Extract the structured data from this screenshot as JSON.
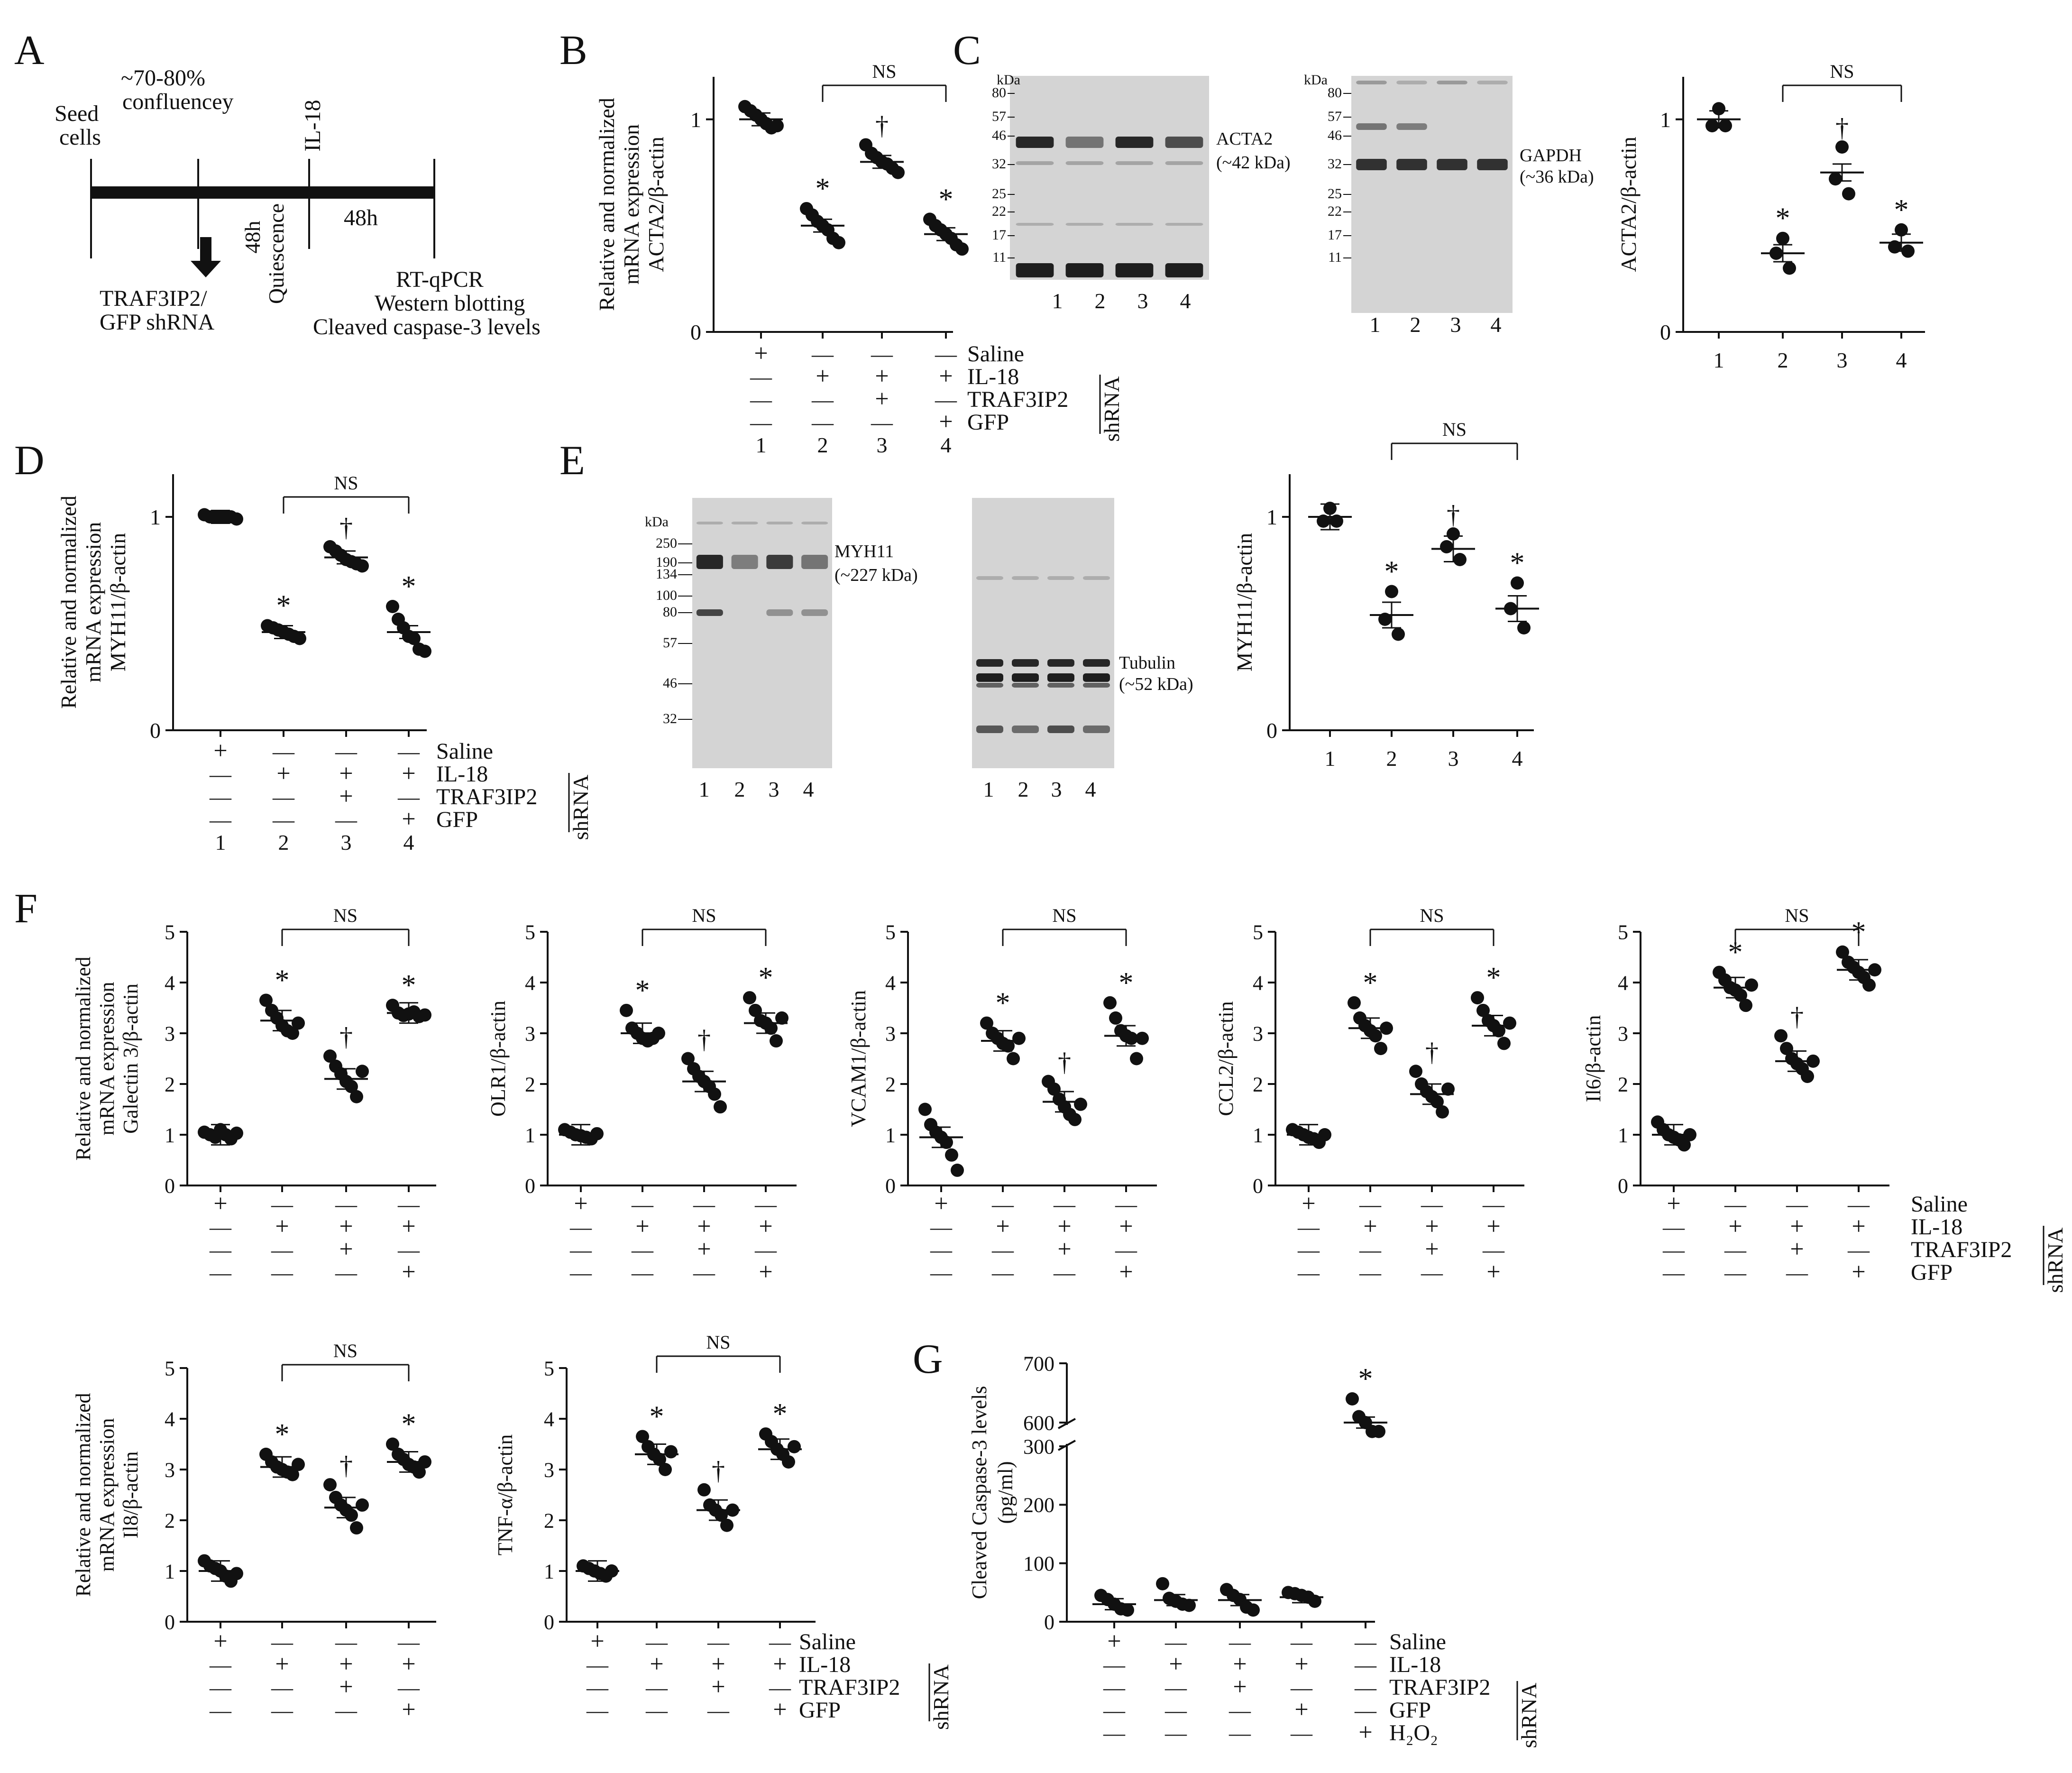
{
  "panel_labels": {
    "A": "A",
    "B": "B",
    "C": "C",
    "D": "D",
    "E": "E",
    "F": "F",
    "G": "G"
  },
  "timeline": {
    "seed": [
      "Seed",
      "cells"
    ],
    "confluency": [
      "~70-80%",
      "confluencey"
    ],
    "il18": "IL-18",
    "shrna": [
      "TRAF3IP2/",
      "GFP shRNA"
    ],
    "quiescence": [
      "48h",
      "Quiescence"
    ],
    "h48": "48h",
    "assays": [
      "RT-qPCR",
      "Western blotting",
      "Cleaved caspase-3 levels"
    ]
  },
  "ylabels": {
    "B": [
      "Relative and normalized",
      "mRNA expression",
      "ACTA2/β-actin"
    ],
    "D": [
      "Relative and normalized",
      "mRNA expression",
      "MYH11/β-actin"
    ],
    "F1": [
      "Relative and normalized",
      "mRNA expression",
      "Galectin 3/β-actin"
    ],
    "F6": [
      "Relative and normalized",
      "mRNA expression",
      "Il8/β-actin"
    ],
    "C": "ACTA2/β-actin",
    "E": "MYH11/β-actin",
    "F2": "OLR1/β-actin",
    "F3": "VCAM1/β-actin",
    "F4": "CCL2/β-actin",
    "F5": "Il6/β-actin",
    "F7": "TNF-α/β-actin",
    "G": [
      "Cleaved Caspase-3 levels",
      "(pg/ml)"
    ]
  },
  "treat_labels": {
    "saline": "Saline",
    "il18": "IL-18",
    "traf": "TRAF3IP2",
    "gfp": "GFP",
    "h2o2": "H₂O₂",
    "shrna": "shRNA"
  },
  "sig": {
    "star": "*",
    "dagger": "†",
    "ns": "NS"
  },
  "lane_numbers": [
    "1",
    "2",
    "3",
    "4"
  ],
  "blots": {
    "kda": "kDa",
    "acta2": {
      "markers": [
        "80",
        "57",
        "46",
        "32",
        "25",
        "22",
        "17",
        "11"
      ],
      "label": [
        "ACTA2",
        "(~42 kDa)"
      ]
    },
    "gapdh": {
      "markers": [
        "80",
        "57",
        "46",
        "32",
        "25",
        "22",
        "17",
        "11"
      ],
      "label": [
        "GAPDH",
        "(~36 kDa)"
      ]
    },
    "myh11": {
      "markers": [
        "250",
        "190",
        "134",
        "100",
        "80",
        "57",
        "46",
        "32"
      ],
      "label": [
        "MYH11",
        "(~227 kDa)"
      ]
    },
    "tubulin": {
      "label": [
        "Tubulin",
        "(~52 kDa)"
      ]
    }
  },
  "chart_data": [
    {
      "id": "B",
      "type": "scatter",
      "ylabel": "ACTA2/β-actin",
      "ylim": [
        0,
        1.2
      ],
      "yticks": [
        "0",
        "1"
      ],
      "groups": [
        "1",
        "2",
        "3",
        "4"
      ],
      "means": [
        1.0,
        0.5,
        0.8,
        0.46
      ],
      "points": [
        [
          1.06,
          1.04,
          1.02,
          1.0,
          0.98,
          0.96,
          0.97
        ],
        [
          0.58,
          0.55,
          0.52,
          0.5,
          0.48,
          0.44,
          0.42
        ],
        [
          0.88,
          0.84,
          0.82,
          0.8,
          0.79,
          0.77,
          0.75
        ],
        [
          0.53,
          0.5,
          0.48,
          0.46,
          0.44,
          0.41,
          0.39
        ]
      ],
      "annot": [
        "",
        "*",
        "†",
        "*"
      ],
      "ns_bracket": [
        2,
        4
      ]
    },
    {
      "id": "C",
      "type": "scatter",
      "ylabel": "ACTA2/β-actin",
      "ylim": [
        0,
        1.2
      ],
      "yticks": [
        "0",
        "1"
      ],
      "xticks": [
        "1",
        "2",
        "3",
        "4"
      ],
      "groups": [
        "1",
        "2",
        "3",
        "4"
      ],
      "means": [
        1.0,
        0.37,
        0.75,
        0.42
      ],
      "points": [
        [
          1.05,
          0.97,
          0.97
        ],
        [
          0.44,
          0.37,
          0.3
        ],
        [
          0.87,
          0.72,
          0.65
        ],
        [
          0.48,
          0.4,
          0.38
        ]
      ],
      "annot": [
        "",
        "*",
        "†",
        "*"
      ],
      "ns_bracket": [
        2,
        4
      ]
    },
    {
      "id": "D",
      "type": "scatter",
      "ylabel": "MYH11/β-actin",
      "ylim": [
        0,
        1.2
      ],
      "yticks": [
        "0",
        "1"
      ],
      "groups": [
        "1",
        "2",
        "3",
        "4"
      ],
      "means": [
        1.0,
        0.46,
        0.81,
        0.46
      ],
      "points": [
        [
          1.01,
          1.0,
          1.0,
          1.0,
          1.0,
          1.0,
          0.99
        ],
        [
          0.49,
          0.48,
          0.47,
          0.46,
          0.45,
          0.44,
          0.43
        ],
        [
          0.86,
          0.84,
          0.82,
          0.8,
          0.79,
          0.78,
          0.77
        ],
        [
          0.58,
          0.52,
          0.48,
          0.44,
          0.43,
          0.38,
          0.37
        ]
      ],
      "annot": [
        "",
        "*",
        "†",
        "*"
      ],
      "ns_bracket": [
        2,
        4
      ]
    },
    {
      "id": "E",
      "type": "scatter",
      "ylabel": "MYH11/β-actin",
      "ylim": [
        0,
        1.2
      ],
      "yticks": [
        "0",
        "1"
      ],
      "xticks": [
        "1",
        "2",
        "3",
        "4"
      ],
      "groups": [
        "1",
        "2",
        "3",
        "4"
      ],
      "means": [
        1.0,
        0.54,
        0.85,
        0.57
      ],
      "points": [
        [
          1.04,
          0.98,
          0.98
        ],
        [
          0.65,
          0.52,
          0.45
        ],
        [
          0.92,
          0.86,
          0.8
        ],
        [
          0.69,
          0.57,
          0.48
        ]
      ],
      "annot": [
        "",
        "*",
        "†",
        "*"
      ],
      "ns_bracket": [
        2,
        4
      ]
    },
    {
      "id": "F1",
      "type": "scatter",
      "ylabel": "Galectin 3/β-actin",
      "ylim": [
        0,
        5
      ],
      "yticks": [
        "0",
        "1",
        "2",
        "3",
        "4",
        "5"
      ],
      "groups": [
        "1",
        "2",
        "3",
        "4"
      ],
      "means": [
        1.0,
        3.25,
        2.1,
        3.4
      ],
      "points": [
        [
          1.05,
          1.0,
          0.95,
          1.1,
          1.0,
          0.92,
          1.03
        ],
        [
          3.65,
          3.45,
          3.3,
          3.15,
          3.05,
          3.0,
          3.2
        ],
        [
          2.55,
          2.35,
          2.2,
          2.05,
          1.95,
          1.75,
          2.25
        ],
        [
          3.55,
          3.4,
          3.35,
          3.38,
          3.42,
          3.33,
          3.36
        ]
      ],
      "annot": [
        "",
        "*",
        "†",
        "*"
      ],
      "ns_bracket": [
        2,
        4
      ]
    },
    {
      "id": "F2",
      "type": "scatter",
      "ylabel": "OLR1/β-actin",
      "ylim": [
        0,
        5
      ],
      "yticks": [
        "0",
        "1",
        "2",
        "3",
        "4",
        "5"
      ],
      "groups": [
        "1",
        "2",
        "3",
        "4"
      ],
      "means": [
        1.0,
        3.0,
        2.05,
        3.2
      ],
      "points": [
        [
          1.1,
          1.05,
          1.0,
          0.98,
          0.95,
          0.92,
          1.02
        ],
        [
          3.45,
          3.1,
          3.0,
          2.9,
          2.85,
          2.9,
          3.0
        ],
        [
          2.5,
          2.3,
          2.15,
          2.05,
          1.95,
          1.8,
          1.55
        ],
        [
          3.7,
          3.45,
          3.25,
          3.2,
          3.1,
          2.85,
          3.3
        ]
      ],
      "annot": [
        "",
        "*",
        "†",
        "*"
      ],
      "ns_bracket": [
        2,
        4
      ]
    },
    {
      "id": "F3",
      "type": "scatter",
      "ylabel": "VCAM1/β-actin",
      "ylim": [
        0,
        5
      ],
      "yticks": [
        "0",
        "1",
        "2",
        "3",
        "4",
        "5"
      ],
      "groups": [
        "1",
        "2",
        "3",
        "4"
      ],
      "means": [
        0.95,
        2.85,
        1.65,
        2.95
      ],
      "points": [
        [
          1.5,
          1.2,
          1.05,
          0.95,
          0.85,
          0.6,
          0.3
        ],
        [
          3.2,
          3.0,
          2.9,
          2.8,
          2.75,
          2.5,
          2.9
        ],
        [
          2.05,
          1.9,
          1.7,
          1.55,
          1.4,
          1.3,
          1.6
        ],
        [
          3.6,
          3.3,
          3.05,
          2.95,
          2.9,
          2.5,
          2.9
        ]
      ],
      "annot": [
        "",
        "*",
        "†",
        "*"
      ],
      "ns_bracket": [
        2,
        4
      ]
    },
    {
      "id": "F4",
      "type": "scatter",
      "ylabel": "CCL2/β-actin",
      "ylim": [
        0,
        5
      ],
      "yticks": [
        "0",
        "1",
        "2",
        "3",
        "4",
        "5"
      ],
      "groups": [
        "1",
        "2",
        "3",
        "4"
      ],
      "means": [
        1.0,
        3.1,
        1.8,
        3.15
      ],
      "points": [
        [
          1.1,
          1.05,
          1.0,
          0.95,
          0.92,
          0.85,
          1.0
        ],
        [
          3.6,
          3.3,
          3.15,
          3.05,
          2.95,
          2.7,
          3.1
        ],
        [
          2.25,
          2.0,
          1.85,
          1.75,
          1.65,
          1.45,
          1.9
        ],
        [
          3.7,
          3.45,
          3.25,
          3.15,
          3.05,
          2.8,
          3.2
        ]
      ],
      "annot": [
        "",
        "*",
        "†",
        "*"
      ],
      "ns_bracket": [
        2,
        4
      ]
    },
    {
      "id": "F5",
      "type": "scatter",
      "ylabel": "Il6/β-actin",
      "ylim": [
        0,
        5
      ],
      "yticks": [
        "0",
        "1",
        "2",
        "3",
        "4",
        "5"
      ],
      "groups": [
        "1",
        "2",
        "3",
        "4"
      ],
      "means": [
        1.0,
        3.9,
        2.45,
        4.25
      ],
      "points": [
        [
          1.25,
          1.1,
          1.0,
          0.95,
          0.9,
          0.8,
          1.0
        ],
        [
          4.2,
          4.05,
          3.9,
          3.85,
          3.75,
          3.55,
          3.95
        ],
        [
          2.95,
          2.7,
          2.5,
          2.4,
          2.3,
          2.15,
          2.45
        ],
        [
          4.6,
          4.4,
          4.3,
          4.2,
          4.1,
          3.95,
          4.25
        ]
      ],
      "annot": [
        "",
        "*",
        "†",
        "*"
      ],
      "ns_bracket": [
        2,
        4
      ]
    },
    {
      "id": "F6",
      "type": "scatter",
      "ylabel": "Il8/β-actin",
      "ylim": [
        0,
        5
      ],
      "yticks": [
        "0",
        "1",
        "2",
        "3",
        "4",
        "5"
      ],
      "groups": [
        "1",
        "2",
        "3",
        "4"
      ],
      "means": [
        1.0,
        3.05,
        2.25,
        3.15
      ],
      "points": [
        [
          1.2,
          1.1,
          1.05,
          1.0,
          0.9,
          0.8,
          0.95
        ],
        [
          3.3,
          3.15,
          3.05,
          3.0,
          2.95,
          2.9,
          3.1
        ],
        [
          2.7,
          2.45,
          2.3,
          2.2,
          2.1,
          1.85,
          2.3
        ],
        [
          3.5,
          3.3,
          3.2,
          3.1,
          3.05,
          2.95,
          3.15
        ]
      ],
      "annot": [
        "",
        "*",
        "†",
        "*"
      ],
      "ns_bracket": [
        2,
        4
      ]
    },
    {
      "id": "F7",
      "type": "scatter",
      "ylabel": "TNF-α/β-actin",
      "ylim": [
        0,
        5
      ],
      "yticks": [
        "0",
        "1",
        "2",
        "3",
        "4",
        "5"
      ],
      "groups": [
        "1",
        "2",
        "3",
        "4"
      ],
      "means": [
        1.0,
        3.3,
        2.2,
        3.4
      ],
      "points": [
        [
          1.1,
          1.05,
          1.0,
          0.95,
          0.9,
          1.0
        ],
        [
          3.65,
          3.45,
          3.3,
          3.2,
          3.0,
          3.35
        ],
        [
          2.6,
          2.3,
          2.2,
          2.1,
          1.9,
          2.2
        ],
        [
          3.7,
          3.55,
          3.4,
          3.3,
          3.15,
          3.45
        ]
      ],
      "annot": [
        "",
        "*",
        "†",
        "*"
      ],
      "ns_bracket": [
        2,
        4
      ]
    },
    {
      "id": "G",
      "type": "scatter",
      "ylabel": "Cleaved Caspase-3 levels (pg/ml)",
      "ylim": [
        0,
        700
      ],
      "yticks": [
        "0",
        "100",
        "200",
        "300",
        "600",
        "700"
      ],
      "axis_break": [
        300,
        600
      ],
      "groups": [
        "1",
        "2",
        "3",
        "4",
        "5"
      ],
      "means": [
        30,
        37,
        37,
        42,
        600
      ],
      "points": [
        [
          45,
          38,
          30,
          22,
          20
        ],
        [
          65,
          40,
          35,
          30,
          28
        ],
        [
          55,
          45,
          38,
          25,
          20
        ],
        [
          50,
          48,
          45,
          42,
          35
        ],
        [
          640,
          610,
          600,
          585,
          585
        ]
      ],
      "annot": [
        "",
        "",
        "",
        "",
        "*"
      ]
    }
  ],
  "treatments": {
    "B": [
      [
        "+",
        "—",
        "—",
        "—"
      ],
      [
        "—",
        "+",
        "+",
        "+"
      ],
      [
        "—",
        "—",
        "+",
        "—"
      ],
      [
        "—",
        "—",
        "—",
        "+"
      ],
      [
        "1",
        "2",
        "3",
        "4"
      ]
    ],
    "D": [
      [
        "+",
        "—",
        "—",
        "—"
      ],
      [
        "—",
        "+",
        "+",
        "+"
      ],
      [
        "—",
        "—",
        "+",
        "—"
      ],
      [
        "—",
        "—",
        "—",
        "+"
      ],
      [
        "1",
        "2",
        "3",
        "4"
      ]
    ],
    "F": [
      [
        "+",
        "—",
        "—",
        "—"
      ],
      [
        "—",
        "+",
        "+",
        "+"
      ],
      [
        "—",
        "—",
        "+",
        "—"
      ],
      [
        "—",
        "—",
        "—",
        "+"
      ]
    ],
    "G": [
      [
        "+",
        "—",
        "—",
        "—",
        "—"
      ],
      [
        "—",
        "+",
        "+",
        "+",
        "—"
      ],
      [
        "—",
        "—",
        "+",
        "—",
        "—"
      ],
      [
        "—",
        "—",
        "—",
        "+",
        "—"
      ],
      [
        "—",
        "—",
        "—",
        "—",
        "+"
      ]
    ]
  }
}
